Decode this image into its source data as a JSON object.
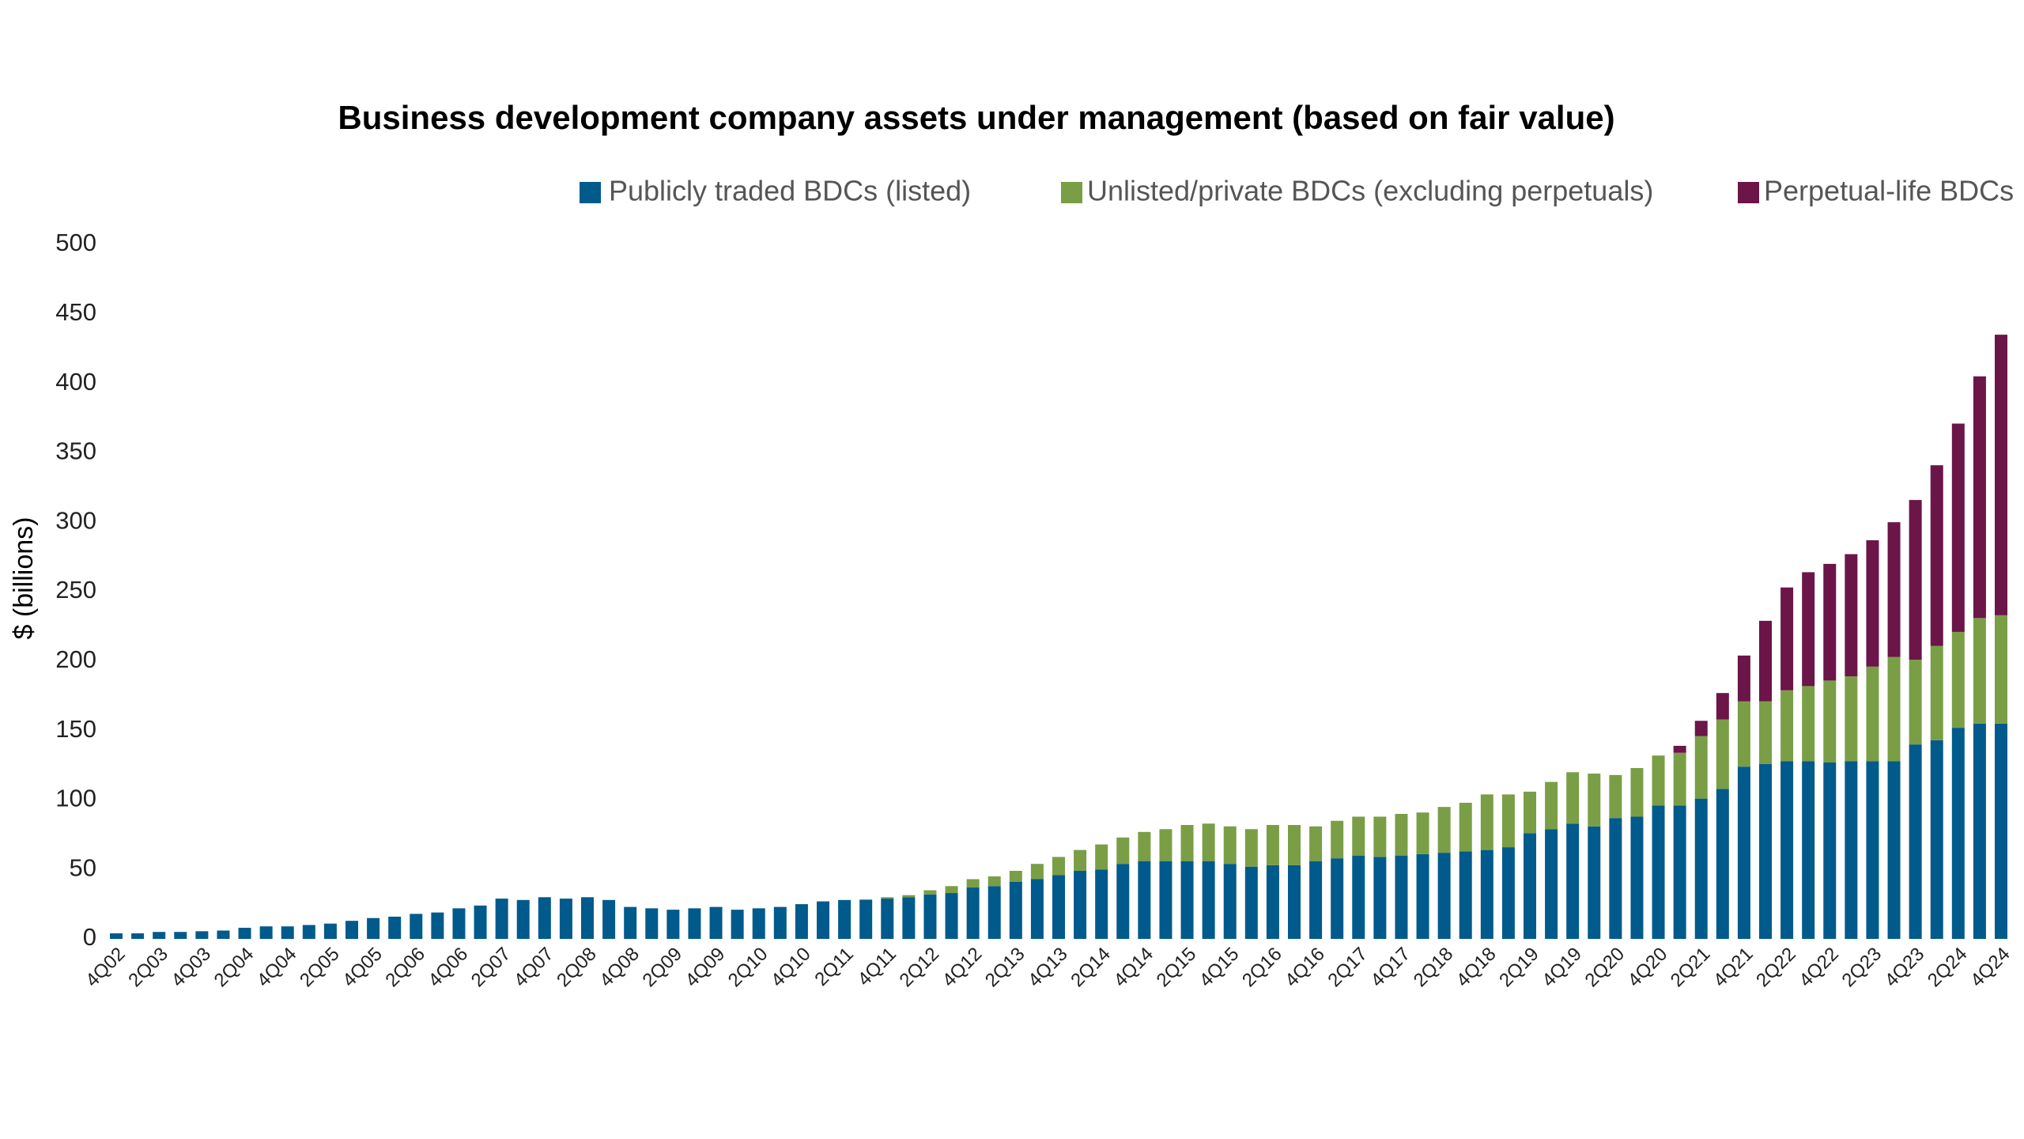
{
  "chart_data": {
    "type": "stacked_bar",
    "title": "Business development company assets under management (based on fair value)",
    "y_label": "$ (billions)",
    "categories": [
      "4Q02",
      null,
      "2Q03",
      null,
      "4Q03",
      null,
      "2Q04",
      null,
      "4Q04",
      null,
      "2Q05",
      null,
      "4Q05",
      null,
      "2Q06",
      null,
      "4Q06",
      null,
      "2Q07",
      null,
      "4Q07",
      null,
      "2Q08",
      null,
      "4Q08",
      null,
      "2Q09",
      null,
      "4Q09",
      null,
      "2Q10",
      null,
      "4Q10",
      null,
      "2Q11",
      null,
      "4Q11",
      null,
      "2Q12",
      null,
      "4Q12",
      null,
      "2Q13",
      null,
      "4Q13",
      null,
      "2Q14",
      null,
      "4Q14",
      null,
      "2Q15",
      null,
      "4Q15",
      null,
      "2Q16",
      null,
      "4Q16",
      null,
      "2Q17",
      null,
      "4Q17",
      null,
      "2Q18",
      null,
      "4Q18",
      null,
      "2Q19",
      null,
      "4Q19",
      null,
      "2Q20",
      null,
      "4Q20",
      null,
      "2Q21",
      null,
      "4Q21",
      null,
      "2Q22",
      null,
      "4Q22",
      null,
      "2Q23",
      null,
      "4Q23",
      null,
      "2Q24",
      null,
      "4Q24"
    ],
    "series": [
      {
        "name": "Publicly traded BDCs (listed)",
        "color": "#005a8c",
        "values": [
          4,
          4,
          5,
          5,
          5.5,
          6,
          8,
          9,
          9,
          10,
          11,
          13,
          15,
          16,
          18,
          19,
          22,
          24,
          29,
          28,
          30,
          29,
          30,
          28,
          23,
          22,
          21,
          22,
          23,
          21,
          22,
          23,
          25,
          27,
          28,
          28,
          29,
          30,
          32,
          33,
          37,
          38,
          41,
          43,
          46,
          49,
          50,
          54,
          56,
          56,
          56,
          56,
          54,
          52,
          53,
          53,
          56,
          58,
          60,
          59,
          60,
          61,
          62,
          63,
          64,
          66,
          76,
          79,
          83,
          81,
          87,
          88,
          96,
          96,
          101,
          108,
          124,
          126,
          128,
          128,
          127,
          128,
          128,
          128,
          140,
          143,
          152,
          155,
          155
        ]
      },
      {
        "name": "Unlisted/private BDCs (excluding perpetuals)",
        "color": "#7a9e45",
        "values": [
          0,
          0,
          0,
          0,
          0,
          0,
          0,
          0,
          0,
          0,
          0,
          0,
          0,
          0,
          0,
          0,
          0,
          0,
          0,
          0,
          0,
          0,
          0,
          0,
          0,
          0,
          0,
          0,
          0,
          0,
          0,
          0,
          0,
          0,
          0,
          0.5,
          1,
          1.5,
          3,
          5,
          6,
          7,
          8,
          11,
          13,
          15,
          18,
          19,
          21,
          23,
          26,
          27,
          27,
          27,
          29,
          29,
          25,
          27,
          28,
          29,
          30,
          30,
          33,
          35,
          40,
          38,
          30,
          34,
          37,
          38,
          31,
          35,
          36,
          38,
          45,
          50,
          47,
          45,
          51,
          54,
          59,
          61,
          68,
          75,
          61,
          68,
          69,
          76,
          78
        ]
      },
      {
        "name": "Perpetual-life BDCs",
        "color": "#6b1548",
        "values": [
          0,
          0,
          0,
          0,
          0,
          0,
          0,
          0,
          0,
          0,
          0,
          0,
          0,
          0,
          0,
          0,
          0,
          0,
          0,
          0,
          0,
          0,
          0,
          0,
          0,
          0,
          0,
          0,
          0,
          0,
          0,
          0,
          0,
          0,
          0,
          0,
          0,
          0,
          0,
          0,
          0,
          0,
          0,
          0,
          0,
          0,
          0,
          0,
          0,
          0,
          0,
          0,
          0,
          0,
          0,
          0,
          0,
          0,
          0,
          0,
          0,
          0,
          0,
          0,
          0,
          0,
          0,
          0,
          0,
          0,
          0,
          0,
          0,
          5,
          11,
          19,
          33,
          58,
          74,
          82,
          84,
          88,
          91,
          97,
          115,
          130,
          150,
          174,
          202
        ]
      }
    ],
    "ylim": [
      0,
      500
    ],
    "yticks": [
      0,
      50,
      100,
      150,
      200,
      250,
      300,
      350,
      400,
      450,
      500
    ]
  }
}
